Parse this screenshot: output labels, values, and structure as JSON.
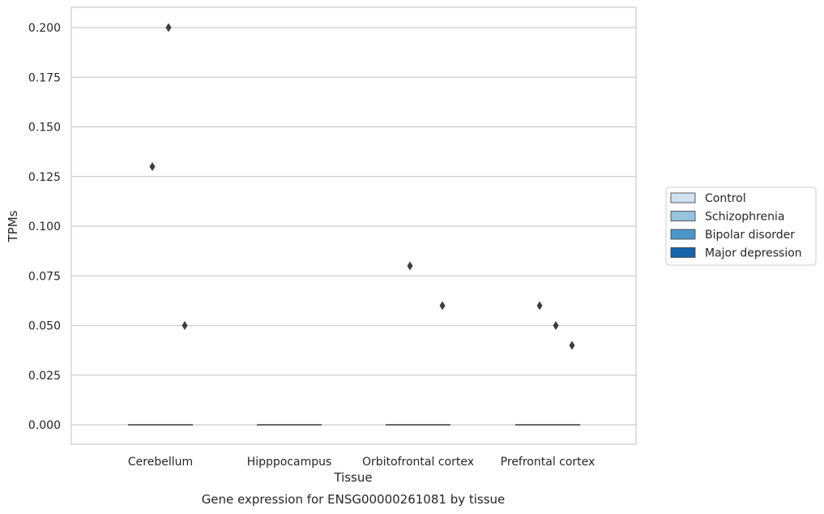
{
  "chart_data": {
    "type": "box",
    "title": "",
    "caption": "Gene expression for ENSG00000261081 by tissue",
    "xlabel": "Tissue",
    "ylabel": "TPMs",
    "ylim": [
      -0.01,
      0.21
    ],
    "yticks": [
      "0.000",
      "0.025",
      "0.050",
      "0.075",
      "0.100",
      "0.125",
      "0.150",
      "0.175",
      "0.200"
    ],
    "grid": "horizontal",
    "legend_position": "right",
    "categories": [
      "Cerebellum",
      "Hipppocampus",
      "Orbitofrontal cortex",
      "Prefrontal cortex"
    ],
    "series": [
      {
        "name": "Control",
        "color": "#d0e1f2",
        "median": [
          0,
          0,
          0,
          0
        ],
        "outliers": [
          [],
          [],
          [],
          []
        ]
      },
      {
        "name": "Schizophrenia",
        "color": "#94c4df",
        "median": [
          0,
          0,
          0,
          0
        ],
        "outliers": [
          [
            0.13
          ],
          [],
          [
            0.08
          ],
          [
            0.06
          ]
        ]
      },
      {
        "name": "Bipolar disorder",
        "color": "#4a98c9",
        "median": [
          0,
          0,
          0,
          0
        ],
        "outliers": [
          [
            0.2
          ],
          [],
          [],
          [
            0.05
          ]
        ]
      },
      {
        "name": "Major depression",
        "color": "#1764ab",
        "median": [
          0,
          0,
          0,
          0
        ],
        "outliers": [
          [
            0.05
          ],
          [],
          [
            0.06
          ],
          [
            0.04
          ]
        ]
      }
    ]
  }
}
